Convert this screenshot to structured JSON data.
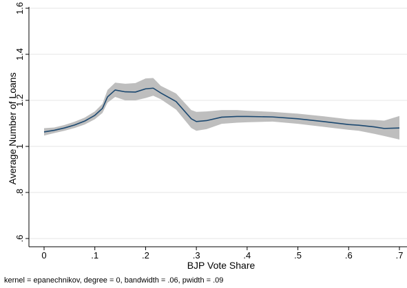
{
  "chart_data": {
    "type": "line",
    "title": "",
    "xlabel": "BJP Vote Share",
    "ylabel": "Average Number of Loans",
    "note": "kernel = epanechnikov, degree = 0, bandwidth = .06, pwidth = .09",
    "xlim": [
      0,
      0.7
    ],
    "ylim": [
      0.6,
      1.6
    ],
    "x_ticks": [
      0,
      0.1,
      0.2,
      0.3,
      0.4,
      0.5,
      0.6,
      0.7
    ],
    "x_tick_labels": [
      "0",
      ".1",
      ".2",
      ".3",
      ".4",
      ".5",
      ".6",
      ".7"
    ],
    "y_ticks": [
      0.6,
      0.8,
      1.0,
      1.2,
      1.4,
      1.6
    ],
    "y_tick_labels": [
      ".6",
      ".8",
      "1",
      "1.2",
      "1.4",
      "1.6"
    ],
    "grid": true,
    "legend": "none",
    "colors": {
      "line": "#1a476f",
      "band": "#bebebe",
      "grid": "#e6e6e6",
      "axis": "#000000"
    },
    "series": [
      {
        "x": [
          0.0,
          0.02,
          0.04,
          0.06,
          0.08,
          0.1,
          0.115,
          0.125,
          0.14,
          0.16,
          0.18,
          0.2,
          0.215,
          0.23,
          0.26,
          0.29,
          0.3,
          0.32,
          0.35,
          0.38,
          0.4,
          0.45,
          0.5,
          0.55,
          0.6,
          0.62,
          0.65,
          0.67,
          0.7
        ],
        "y": [
          1.063,
          1.07,
          1.08,
          1.093,
          1.11,
          1.135,
          1.165,
          1.215,
          1.245,
          1.237,
          1.236,
          1.25,
          1.253,
          1.232,
          1.195,
          1.12,
          1.108,
          1.112,
          1.127,
          1.13,
          1.13,
          1.128,
          1.12,
          1.108,
          1.095,
          1.092,
          1.085,
          1.078,
          1.08
        ],
        "lower": [
          1.047,
          1.058,
          1.068,
          1.08,
          1.095,
          1.118,
          1.145,
          1.19,
          1.215,
          1.2,
          1.2,
          1.21,
          1.22,
          1.205,
          1.16,
          1.08,
          1.068,
          1.075,
          1.098,
          1.103,
          1.105,
          1.108,
          1.098,
          1.085,
          1.072,
          1.068,
          1.055,
          1.045,
          1.03
        ],
        "upper": [
          1.079,
          1.082,
          1.093,
          1.107,
          1.125,
          1.152,
          1.185,
          1.245,
          1.277,
          1.272,
          1.275,
          1.295,
          1.297,
          1.263,
          1.23,
          1.158,
          1.15,
          1.152,
          1.158,
          1.158,
          1.155,
          1.15,
          1.142,
          1.131,
          1.118,
          1.116,
          1.115,
          1.112,
          1.132
        ]
      }
    ]
  }
}
